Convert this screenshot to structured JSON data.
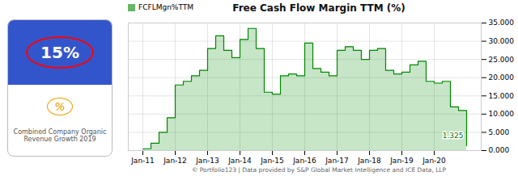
{
  "chart_data": {
    "type": "step",
    "title": "Free Cash Flow Margin TTM (%)",
    "categories": [
      "Jan-11",
      null,
      null,
      null,
      "Jan-12",
      null,
      null,
      null,
      "Jan-13",
      null,
      null,
      null,
      "Jan-14",
      null,
      null,
      null,
      "Jan-15",
      null,
      null,
      null,
      "Jan-16",
      null,
      null,
      null,
      "Jan-17",
      null,
      null,
      null,
      "Jan-18",
      null,
      null,
      null,
      "Jan-19",
      null,
      null,
      null,
      "Jan-20",
      null,
      null,
      null,
      null
    ],
    "series": [
      {
        "name": "FCFLMgn%TTM",
        "color": "#008800",
        "values": [
          0.5,
          2.0,
          5.0,
          9.0,
          18.0,
          19.0,
          20.5,
          22.0,
          28.0,
          31.5,
          27.5,
          25.5,
          30.5,
          33.5,
          28.0,
          16.0,
          15.5,
          20.5,
          21.0,
          20.5,
          29.5,
          22.5,
          21.5,
          20.5,
          27.5,
          28.5,
          27.5,
          25.0,
          27.5,
          28.0,
          22.0,
          21.0,
          21.5,
          23.5,
          24.5,
          19.0,
          18.5,
          19.0,
          12.0,
          11.0,
          1.325
        ]
      }
    ],
    "ylim": [
      0,
      35
    ],
    "yticks": [
      {
        "value": 0,
        "label": "0.000"
      },
      {
        "value": 5,
        "label": "5.000"
      },
      {
        "value": 10,
        "label": "10.000"
      },
      {
        "value": 15,
        "label": "15.000"
      },
      {
        "value": 20,
        "label": "20.000"
      },
      {
        "value": 25,
        "label": "25.000"
      },
      {
        "value": 30,
        "label": "30.000"
      },
      {
        "value": 35,
        "label": "35.000"
      }
    ],
    "grid": true,
    "legend": "upper left",
    "annotations": [
      {
        "text": "1.325",
        "x": 40,
        "y": 1.325
      }
    ],
    "info_box": [
      "15%",
      "%",
      "Combined Company Organic\nRevenue Growth 2019"
    ],
    "footnote": "© Portfolio123 | Data provided by S&P Global Market Intelligence and ICE Data, LLP"
  }
}
